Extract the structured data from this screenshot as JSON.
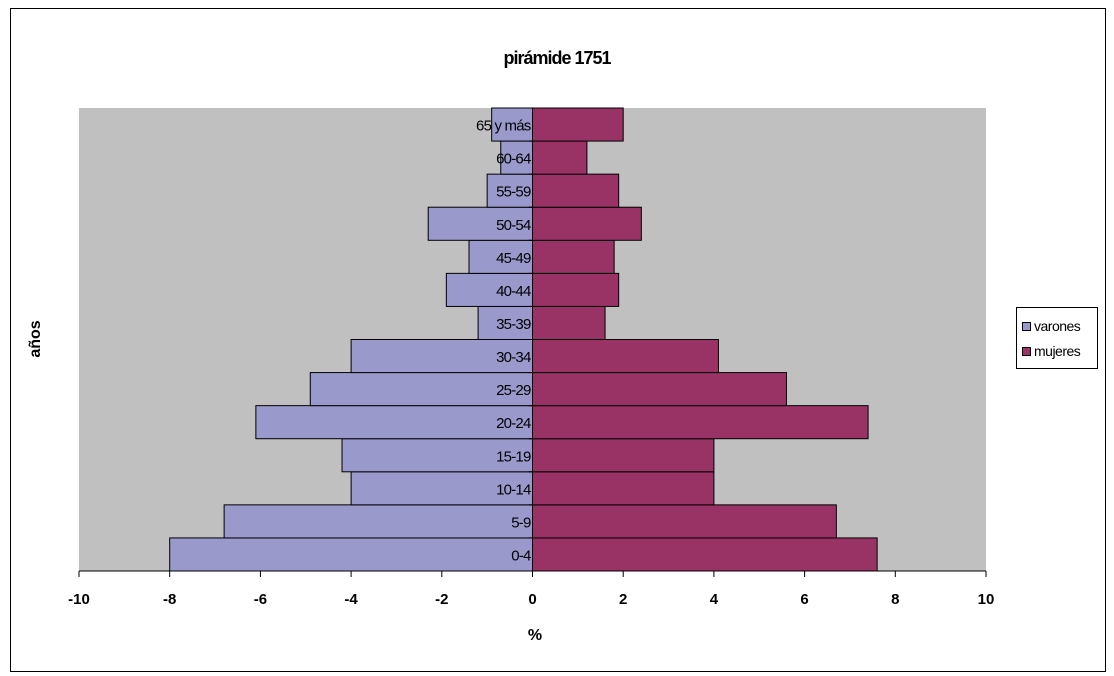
{
  "chart_data": {
    "type": "bar",
    "orientation": "horizontal",
    "title": "pirámide 1751",
    "xlabel": "%",
    "ylabel": "años",
    "xlim": [
      -10,
      10
    ],
    "xticks": [
      -10,
      -8,
      -6,
      -4,
      -2,
      0,
      2,
      4,
      6,
      8,
      10
    ],
    "grid": false,
    "legend_position": "right",
    "plot_background": "#c0c0c0",
    "categories": [
      "0-4",
      "5-9",
      "10-14",
      "15-19",
      "20-24",
      "25-29",
      "30-34",
      "35-39",
      "40-44",
      "45-49",
      "50-54",
      "55-59",
      "60-64",
      "65 y más"
    ],
    "series": [
      {
        "name": "varones",
        "color": "#9999cc",
        "values": [
          -8.0,
          -6.8,
          -4.0,
          -4.2,
          -6.1,
          -4.9,
          -4.0,
          -1.2,
          -1.9,
          -1.4,
          -2.3,
          -1.0,
          -0.7,
          -0.9
        ]
      },
      {
        "name": "mujeres",
        "color": "#993366",
        "values": [
          7.6,
          6.7,
          4.0,
          4.0,
          7.4,
          5.6,
          4.1,
          1.6,
          1.9,
          1.8,
          2.4,
          1.9,
          1.2,
          2.0
        ]
      }
    ]
  }
}
